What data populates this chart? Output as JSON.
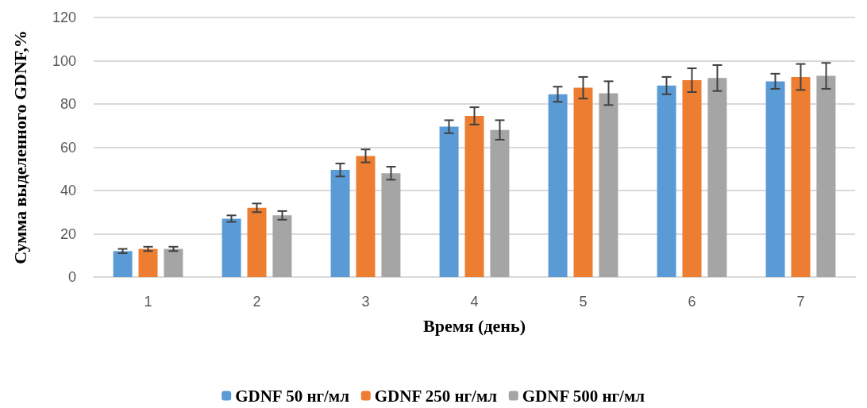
{
  "chart_data": {
    "type": "bar",
    "xlabel": "Время (день)",
    "ylabel": "Сумма выделенного GDNF,%",
    "categories": [
      "1",
      "2",
      "3",
      "4",
      "5",
      "6",
      "7"
    ],
    "series": [
      {
        "name": "GDNF 50 нг/мл",
        "color": "#5b9bd5",
        "values": [
          12,
          27,
          49.5,
          69.5,
          84.5,
          88.5,
          90.5
        ],
        "errors": [
          1,
          1.5,
          3,
          3,
          3.5,
          4,
          3.5
        ]
      },
      {
        "name": "GDNF 250 нг/мл",
        "color": "#ed7d31",
        "values": [
          13,
          32,
          56,
          74.5,
          87.5,
          91,
          92.5
        ],
        "errors": [
          1,
          2,
          3,
          4,
          5,
          5.5,
          6
        ]
      },
      {
        "name": "GDNF 500 нг/мл",
        "color": "#a5a5a5",
        "values": [
          13,
          28.5,
          48,
          68,
          85,
          92,
          93
        ],
        "errors": [
          1,
          2,
          3,
          4.5,
          5.5,
          6,
          6
        ]
      }
    ],
    "ylim": [
      0,
      120
    ],
    "yticks": [
      0,
      20,
      40,
      60,
      80,
      100,
      120
    ],
    "grid": "y",
    "legend": "bottom"
  }
}
